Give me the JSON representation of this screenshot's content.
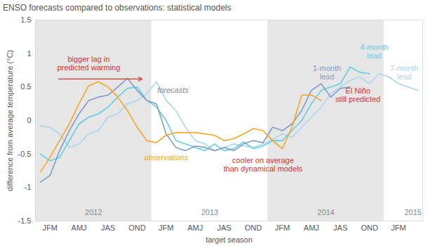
{
  "chart_data": {
    "type": "line",
    "title": "ENSO forecasts compared to observations: statistical models",
    "x_label": "target season",
    "y_label": "difference from average temperature (°C)",
    "categories": [
      null,
      "JFM",
      null,
      null,
      "AMJ",
      null,
      null,
      "JAS",
      null,
      null,
      "OND",
      null,
      null,
      "JFM",
      null,
      null,
      "AMJ",
      null,
      null,
      "JAS",
      null,
      null,
      "OND",
      null,
      null,
      "JFM",
      null,
      null,
      "AMJ",
      null,
      null,
      "JAS",
      null,
      null,
      "OND",
      null,
      null,
      "JFM",
      null,
      null
    ],
    "year_labels": [
      "2012",
      "2013",
      "2014",
      "2015"
    ],
    "ylim": [
      -1.5,
      1.5
    ],
    "yticks": [
      -1.5,
      -1,
      -0.5,
      0,
      0.5,
      1,
      1.5
    ],
    "grid": false,
    "series": [
      {
        "name": "observations",
        "color": "#f5a623",
        "label": {
          "x": 13,
          "y": -0.55
        },
        "values": [
          -0.77,
          -0.55,
          -0.3,
          -0.05,
          0.25,
          0.52,
          0.58,
          0.5,
          0.35,
          0.15,
          -0.1,
          -0.3,
          -0.33,
          -0.22,
          -0.18,
          -0.18,
          -0.18,
          -0.2,
          -0.22,
          -0.3,
          -0.27,
          -0.2,
          -0.12,
          -0.15,
          -0.3,
          -0.42,
          -0.1,
          0.38,
          0.38,
          0.3,
          null,
          null,
          null,
          null,
          null,
          null,
          null,
          null,
          null,
          null
        ]
      },
      {
        "name": "1-month\nlead",
        "color": "#7f9cc9",
        "label": {
          "x": 29.6,
          "y": 0.72
        },
        "values": [
          -0.92,
          -0.82,
          -0.45,
          -0.15,
          0.1,
          0.3,
          0.35,
          0.38,
          0.5,
          0.63,
          0.45,
          0.3,
          0.25,
          -0.2,
          -0.4,
          -0.45,
          -0.38,
          -0.4,
          -0.45,
          -0.4,
          -0.45,
          -0.35,
          -0.3,
          -0.33,
          -0.1,
          -0.15,
          -0.05,
          0.15,
          0.45,
          0.55,
          0.35,
          0.48,
          0.5,
          null,
          null,
          null,
          null,
          null,
          null,
          null
        ]
      },
      {
        "name": "4-month\nlead",
        "color": "#5fcfe0",
        "label": {
          "x": 34.5,
          "y": 1.03
        },
        "values": [
          -0.5,
          -0.6,
          -0.55,
          -0.3,
          -0.05,
          0.05,
          0.1,
          0.2,
          0.35,
          0.48,
          0.5,
          0.3,
          0.2,
          0.0,
          -0.3,
          -0.35,
          -0.4,
          -0.45,
          -0.35,
          -0.45,
          -0.42,
          -0.32,
          -0.42,
          -0.38,
          -0.3,
          -0.3,
          -0.15,
          0.0,
          0.25,
          0.45,
          0.5,
          0.55,
          0.8,
          0.72,
          0.7,
          null,
          null,
          null,
          null,
          null
        ]
      },
      {
        "name": "7-month\nlead",
        "color": "#a9d6ee",
        "label": {
          "x": 37.6,
          "y": 0.72
        },
        "values": [
          -0.08,
          -0.1,
          -0.2,
          -0.4,
          -0.35,
          -0.2,
          -0.15,
          0.05,
          0.1,
          0.25,
          0.3,
          0.4,
          0.58,
          0.3,
          0.15,
          -0.1,
          -0.3,
          -0.35,
          -0.45,
          -0.4,
          -0.35,
          -0.38,
          -0.4,
          -0.35,
          -0.28,
          -0.2,
          -0.25,
          -0.1,
          0.05,
          0.2,
          0.4,
          0.5,
          0.6,
          0.65,
          0.55,
          0.7,
          0.65,
          0.55,
          0.5,
          0.45
        ]
      }
    ],
    "annotations": [
      {
        "text": "bigger lag in\npredicted warming",
        "x": 5,
        "y": 0.85,
        "color": "#d9342b",
        "arrow": {
          "x1": 1.9,
          "x2": 10.5,
          "y": 0.62
        }
      },
      {
        "text": "forecasts",
        "x": 13.7,
        "y": 0.45,
        "color": "#888888"
      },
      {
        "text": "cooler on average\nthan dynamical models",
        "x": 23,
        "y": -0.66,
        "color": "#d9342b"
      },
      {
        "text": "El Niño\nstill predicted",
        "x": 32.8,
        "y": 0.38,
        "color": "#d9342b"
      }
    ]
  }
}
